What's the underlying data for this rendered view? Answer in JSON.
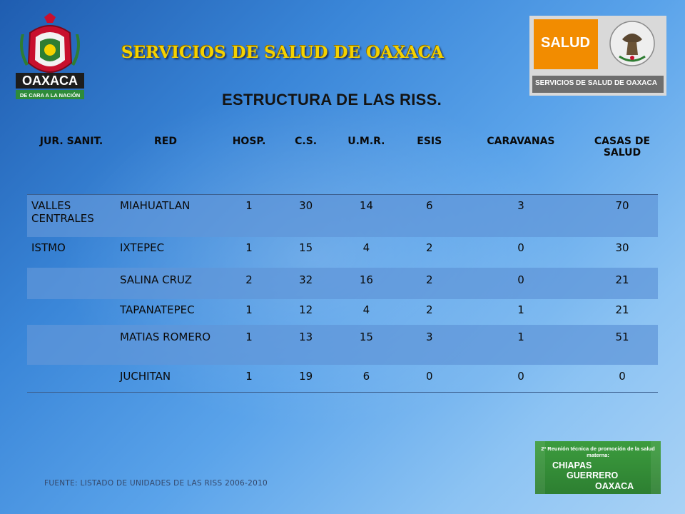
{
  "header": {
    "title": "SERVICIOS DE SALUD DE OAXACA",
    "subtitle": "ESTRUCTURA DE LAS RISS."
  },
  "left_logo": {
    "word": "OAXACA",
    "tagline": "DE CARA A LA NACIÓN",
    "icon": "oaxaca-coat-of-arms"
  },
  "right_logo": {
    "word": "SALUD",
    "caption": "SERVICIOS DE SALUD DE OAXACA",
    "icon": "mexican-eagle-seal"
  },
  "table": {
    "headers": [
      "JUR. SANIT.",
      "RED",
      "HOSP.",
      "C.S.",
      "U.M.R.",
      "ESIS",
      "CARAVANAS",
      "CASAS DE SALUD"
    ],
    "rows": [
      [
        "VALLES CENTRALES",
        "MIAHUATLAN",
        "1",
        "30",
        "14",
        "6",
        "3",
        "70"
      ],
      [
        "ISTMO",
        "IXTEPEC",
        "1",
        "15",
        "4",
        "2",
        "0",
        "30"
      ],
      [
        "",
        "SALINA CRUZ",
        "2",
        "32",
        "16",
        "2",
        "0",
        "21"
      ],
      [
        "",
        "TAPANATEPEC",
        "1",
        "12",
        "4",
        "2",
        "1",
        "21"
      ],
      [
        "",
        "MATIAS ROMERO",
        "1",
        "13",
        "15",
        "3",
        "1",
        "51"
      ],
      [
        "",
        "JUCHITAN",
        "1",
        "19",
        "6",
        "0",
        "0",
        "0"
      ]
    ]
  },
  "footer": {
    "source": "FUENTE: LISTADO DE UNIDADES DE LAS RISS 2006-2010"
  },
  "event_logo": {
    "heading": "2ª Reunión técnica de promoción de la salud materna:",
    "states": [
      "CHIAPAS",
      "GUERRERO",
      "OAXACA"
    ]
  },
  "colors": {
    "title_yellow": "#f5d200",
    "row_band": "#6096d8",
    "salud_orange": "#f28c00",
    "event_green": "#3c9c3e"
  }
}
